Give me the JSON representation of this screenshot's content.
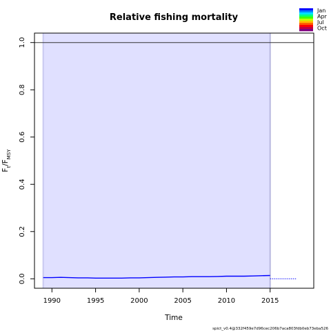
{
  "chart_data": {
    "type": "line",
    "title": "Relative fishing mortality",
    "xlabel": "Time",
    "ylabel_main": "F",
    "ylabel_sub1": "t",
    "ylabel_mid": "/F",
    "ylabel_sub2": "MSY",
    "xlim": [
      1988,
      2020
    ],
    "ylim": [
      -0.04,
      1.04
    ],
    "xticks": [
      1990,
      1995,
      2000,
      2005,
      2010,
      2015
    ],
    "yticks": [
      0.0,
      0.2,
      0.4,
      0.6,
      0.8,
      1.0
    ],
    "ytick_labels": [
      "0.0",
      "0.2",
      "0.4",
      "0.6",
      "0.8",
      "1.0"
    ],
    "reference_line": 1.0,
    "shaded_band": {
      "x": [
        1989,
        2015
      ],
      "y": [
        -0.04,
        1.04
      ]
    },
    "series": [
      {
        "style": "solid",
        "color": "#0000ff",
        "x": [
          1989,
          1990,
          1991,
          1992,
          1993,
          1994,
          1995,
          1996,
          1997,
          1998,
          1999,
          2000,
          2001,
          2002,
          2003,
          2004,
          2005,
          2006,
          2007,
          2008,
          2009,
          2010,
          2011,
          2012,
          2013,
          2014,
          2015
        ],
        "y": [
          0.005,
          0.005,
          0.006,
          0.005,
          0.004,
          0.004,
          0.003,
          0.003,
          0.003,
          0.003,
          0.004,
          0.004,
          0.005,
          0.006,
          0.007,
          0.008,
          0.008,
          0.009,
          0.009,
          0.009,
          0.01,
          0.011,
          0.011,
          0.011,
          0.012,
          0.013,
          0.014
        ]
      },
      {
        "style": "dotted",
        "color": "#0000ff",
        "x": [
          2015,
          2018
        ],
        "y": [
          0.0,
          0.0
        ]
      }
    ],
    "legend": {
      "placement": "top-right",
      "labels": [
        "Jan",
        "Apr",
        "Jul",
        "Oct"
      ],
      "colors": [
        "#0000ff",
        "#0080ff",
        "#00e0ff",
        "#00ff80",
        "#40ff00",
        "#c0ff00",
        "#ffc000",
        "#ff6000",
        "#ff0000",
        "#c00040",
        "#800080"
      ]
    },
    "footnote": "spict_v0.4@332f459e7d96cec206b7aca803fdb0eb73eba526"
  }
}
